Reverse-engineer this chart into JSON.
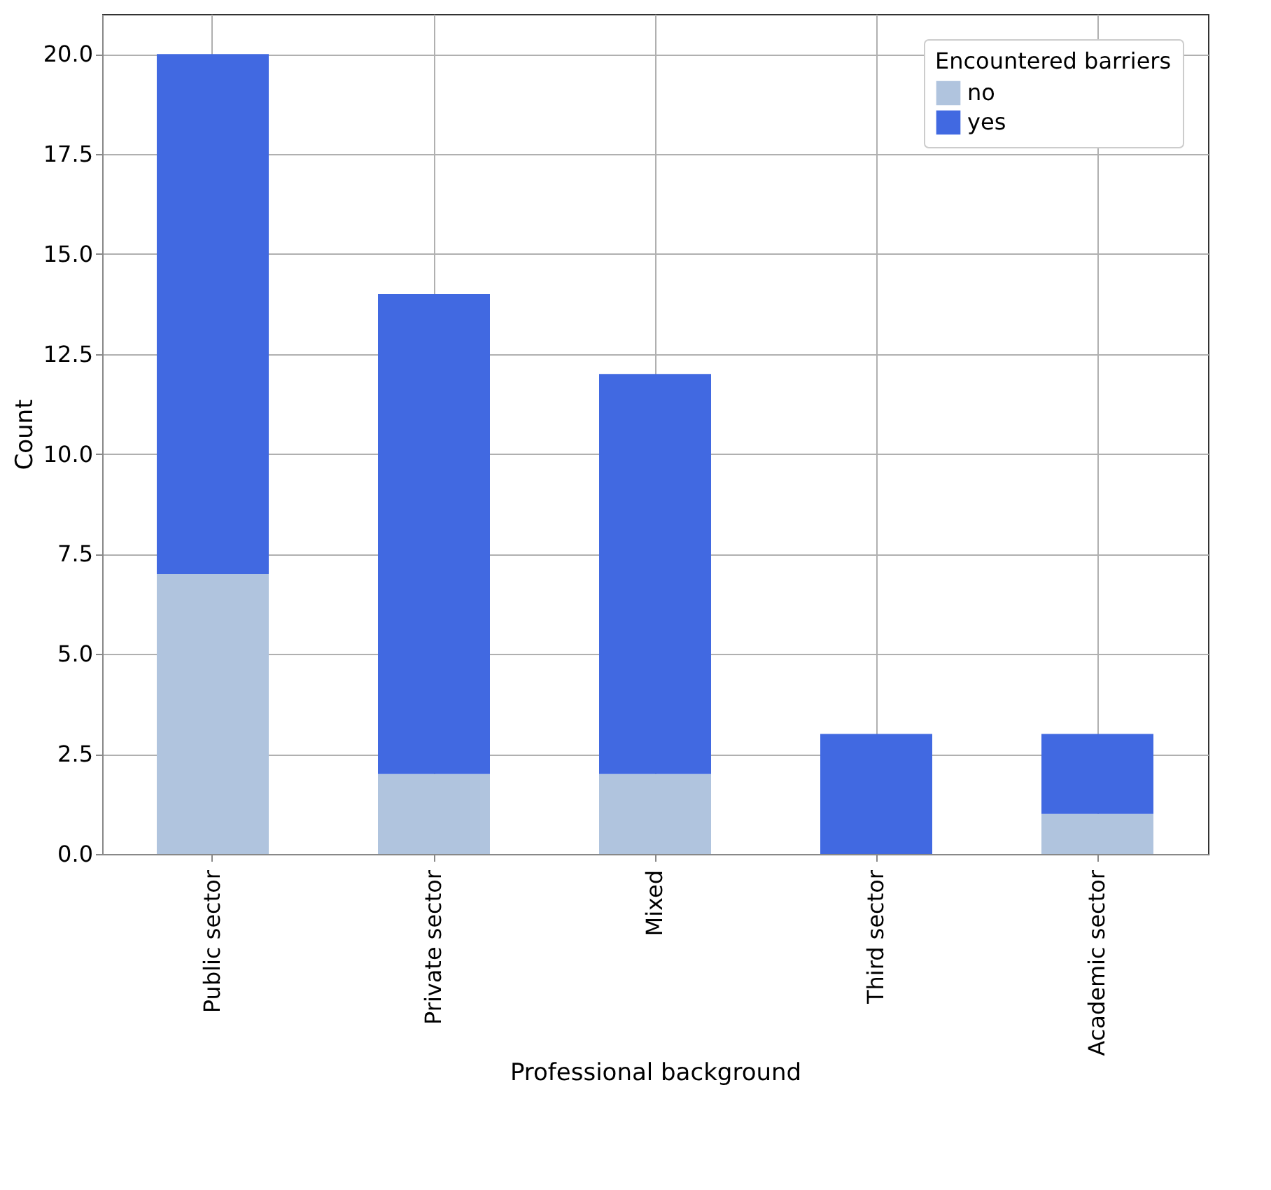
{
  "chart_data": {
    "type": "bar",
    "stacked": true,
    "xlabel": "Professional background",
    "ylabel": "Count",
    "legend_title": "Encountered barriers",
    "categories": [
      "Public sector",
      "Private sector",
      "Mixed",
      "Third sector",
      "Academic sector"
    ],
    "series": [
      {
        "name": "no",
        "color": "#b0c4de",
        "values": [
          7,
          2,
          2,
          0,
          1
        ]
      },
      {
        "name": "yes",
        "color": "#4169e1",
        "values": [
          13,
          12,
          10,
          3,
          2
        ]
      }
    ],
    "ylim": [
      0,
      21
    ],
    "yticks": [
      {
        "value": 0,
        "label": "0.0"
      },
      {
        "value": 2.5,
        "label": "2.5"
      },
      {
        "value": 5,
        "label": "5.0"
      },
      {
        "value": 7.5,
        "label": "7.5"
      },
      {
        "value": 10,
        "label": "10.0"
      },
      {
        "value": 12.5,
        "label": "12.5"
      },
      {
        "value": 15,
        "label": "15.0"
      },
      {
        "value": 17.5,
        "label": "17.5"
      },
      {
        "value": 20,
        "label": "20.0"
      }
    ],
    "grid": true,
    "legend": "top right"
  }
}
